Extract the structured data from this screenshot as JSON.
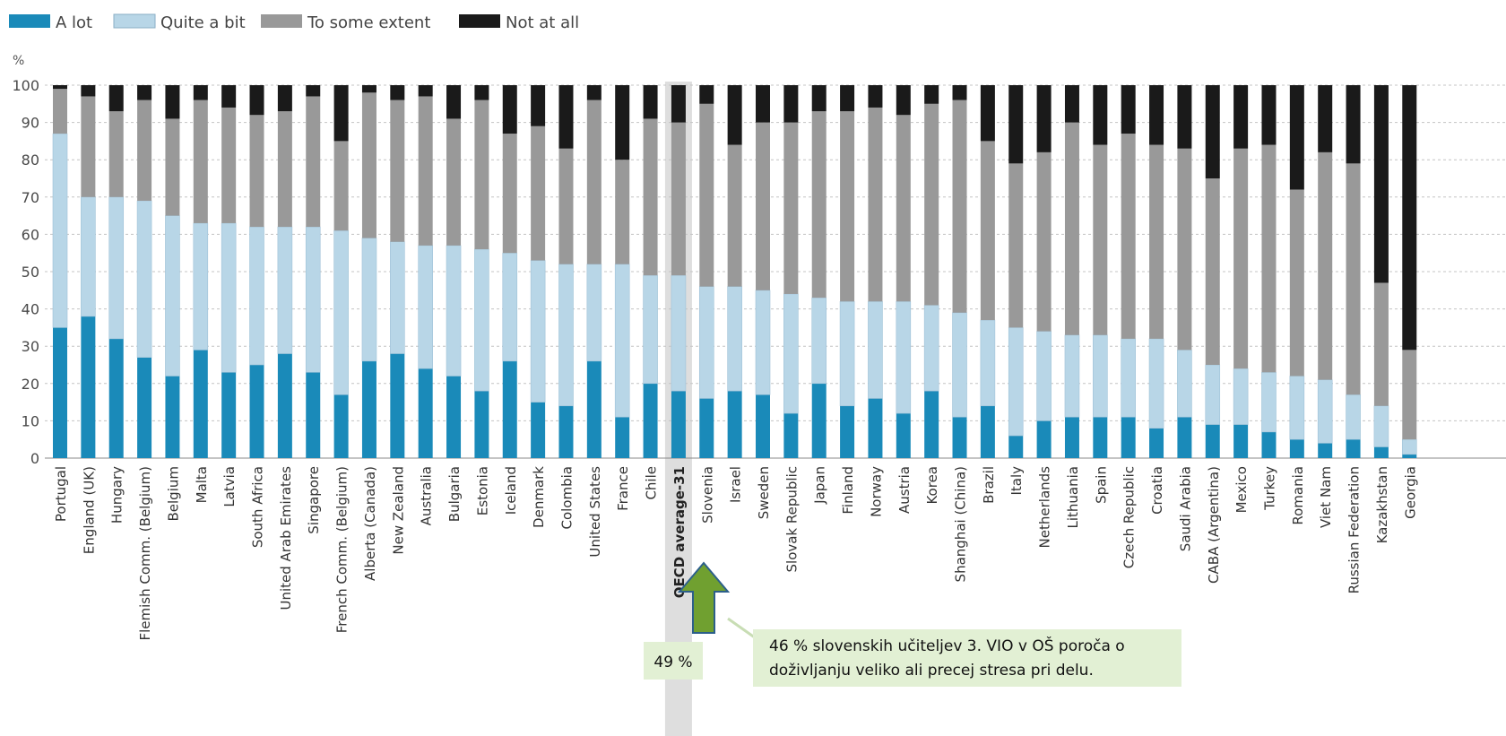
{
  "colors": {
    "a_lot": "#1a8ab9",
    "quite_a_bit": "#b8d6e7",
    "some_extent": "#999999",
    "not_at_all": "#1a1a1a",
    "callout_bg": "#e2f0d4",
    "arrow_fill": "#70a030",
    "arrow_stroke": "#2c5f8a",
    "highlight_bg": "#dedede"
  },
  "chart_data": {
    "type": "bar",
    "stacked": true,
    "unit_label": "%",
    "ylim": [
      0,
      100
    ],
    "yticks": [
      0,
      10,
      20,
      30,
      40,
      50,
      60,
      70,
      80,
      90,
      100
    ],
    "legend_position": "top-left",
    "grid": true,
    "highlighted_category": "OECD average-31",
    "legend": [
      "A lot",
      "Quite a bit",
      "To some extent",
      "Not at all"
    ],
    "categories": [
      "Portugal",
      "England (UK)",
      "Hungary",
      "Flemish Comm. (Belgium)",
      "Belgium",
      "Malta",
      "Latvia",
      "South Africa",
      "United Arab Emirates",
      "Singapore",
      "French Comm. (Belgium)",
      "Alberta (Canada)",
      "New Zealand",
      "Australia",
      "Bulgaria",
      "Estonia",
      "Iceland",
      "Denmark",
      "Colombia",
      "United States",
      "France",
      "Chile",
      "OECD average-31",
      "Slovenia",
      "Israel",
      "Sweden",
      "Slovak Republic",
      "Japan",
      "Finland",
      "Norway",
      "Austria",
      "Korea",
      "Shanghai (China)",
      "Brazil",
      "Italy",
      "Netherlands",
      "Lithuania",
      "Spain",
      "Czech Republic",
      "Croatia",
      "Saudi Arabia",
      "CABA (Argentina)",
      "Mexico",
      "Turkey",
      "Romania",
      "Viet Nam",
      "Russian Federation",
      "Kazakhstan",
      "Georgia"
    ],
    "series": [
      {
        "name": "A lot",
        "values": [
          35,
          38,
          32,
          27,
          22,
          29,
          23,
          25,
          28,
          23,
          17,
          26,
          28,
          24,
          22,
          18,
          26,
          15,
          14,
          26,
          11,
          20,
          18,
          16,
          18,
          17,
          12,
          20,
          14,
          16,
          12,
          18,
          11,
          14,
          6,
          10,
          11,
          11,
          11,
          8,
          11,
          9,
          9,
          7,
          5,
          4,
          5,
          3,
          1
        ]
      },
      {
        "name": "Quite a bit",
        "values": [
          52,
          32,
          38,
          42,
          43,
          34,
          40,
          37,
          34,
          39,
          44,
          33,
          30,
          33,
          35,
          38,
          29,
          38,
          38,
          26,
          41,
          29,
          31,
          30,
          28,
          28,
          32,
          23,
          28,
          26,
          30,
          23,
          28,
          23,
          29,
          24,
          22,
          22,
          21,
          24,
          18,
          16,
          15,
          16,
          17,
          17,
          12,
          11,
          4
        ]
      },
      {
        "name": "To some extent",
        "values": [
          12,
          27,
          23,
          27,
          26,
          33,
          31,
          30,
          31,
          35,
          24,
          39,
          38,
          40,
          34,
          40,
          32,
          36,
          31,
          44,
          28,
          42,
          41,
          49,
          38,
          45,
          46,
          50,
          51,
          52,
          50,
          54,
          57,
          48,
          44,
          48,
          57,
          51,
          55,
          52,
          54,
          50,
          59,
          61,
          50,
          61,
          62,
          33,
          24
        ]
      },
      {
        "name": "Not at all",
        "values": [
          1,
          3,
          7,
          4,
          9,
          4,
          6,
          8,
          7,
          3,
          15,
          2,
          4,
          3,
          9,
          4,
          13,
          11,
          17,
          4,
          20,
          9,
          10,
          5,
          16,
          10,
          10,
          7,
          7,
          6,
          8,
          5,
          4,
          15,
          21,
          18,
          10,
          16,
          13,
          16,
          17,
          25,
          17,
          16,
          28,
          18,
          21,
          53,
          71
        ]
      }
    ]
  },
  "annotations": {
    "oecd_value_label": "49 %",
    "callout_line1": "46 % slovenskih učiteljev 3. VIO v OŠ poroča o",
    "callout_line2": "doživljanju veliko ali precej stresa pri delu."
  }
}
